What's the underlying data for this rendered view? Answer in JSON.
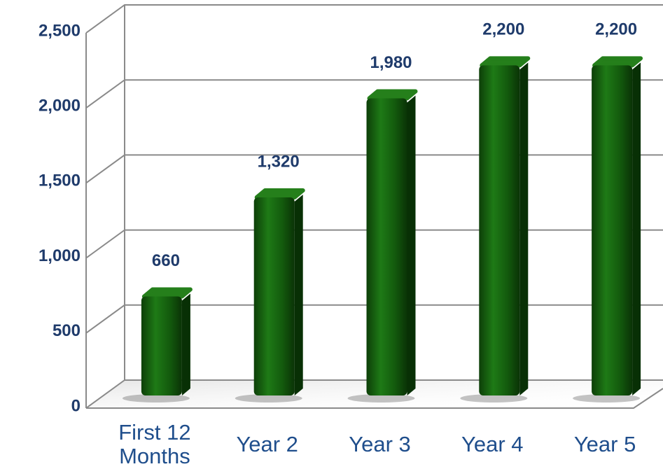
{
  "chart_data": {
    "type": "bar",
    "categories": [
      "First 12 Months",
      "Year 2",
      "Year 3",
      "Year 4",
      "Year 5"
    ],
    "values": [
      660,
      1320,
      1980,
      2200,
      2200
    ],
    "value_labels": [
      "660",
      "1,320",
      "1,980",
      "2,200",
      "2,200"
    ],
    "color": "#1a6a12",
    "ylim": [
      0,
      2500
    ],
    "yticks": [
      0,
      500,
      {
        "value": 1000,
        "label": "1,000"
      },
      {
        "value": 1500,
        "label": "1,500"
      },
      {
        "value": 2000,
        "label": "2,000"
      },
      {
        "value": 2500,
        "label": "2,500"
      }
    ],
    "grid": true
  }
}
